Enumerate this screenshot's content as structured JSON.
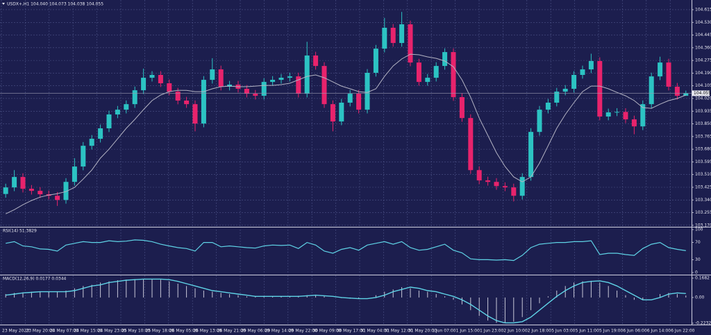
{
  "chart_data": [
    {
      "type": "candlestick",
      "title": "USDX+,H1  104.040 104.073 104.038 104.055",
      "up_color": "#2cc3c3",
      "down_color": "#e8236c",
      "grid": true,
      "ylim": [
        103.16,
        104.68
      ],
      "yticks": [
        104.615,
        {
          "value": 104.53,
          "label": "104.530"
        },
        104.445,
        {
          "value": 104.36,
          "label": "104.360"
        },
        104.275,
        {
          "value": 104.19,
          "label": "104.190"
        },
        104.105,
        {
          "value": 104.02,
          "label": "104.020"
        },
        103.935,
        {
          "value": 103.85,
          "label": "103.850"
        },
        103.765,
        {
          "value": 103.68,
          "label": "103.680"
        },
        103.595,
        {
          "value": 103.51,
          "label": "103.510"
        },
        103.425,
        {
          "value": 103.34,
          "label": "103.340"
        },
        103.255,
        {
          "value": 103.17,
          "label": "103.170"
        }
      ],
      "x_labels": [
        "23 May 2023",
        "23 May 20:00",
        "24 May 07:00",
        "24 May 15:00",
        "24 May 23:00",
        "25 May 10:00",
        "25 May 18:00",
        "26 May 05:00",
        "26 May 13:00",
        "26 May 21:00",
        "29 May 06:00",
        "29 May 14:00",
        "29 May 22:00",
        "30 May 09:00",
        "30 May 17:00",
        "31 May 04:00",
        "31 May 12:00",
        "31 May 20:00",
        "1 Jun 07:00",
        "1 Jun 15:00",
        "1 Jun 23:00",
        "2 Jun 10:00",
        "2 Jun 18:00",
        "5 Jun 03:00",
        "5 Jun 11:00",
        "5 Jun 19:00",
        "6 Jun 06:00",
        "6 Jun 14:00",
        "6 Jun 22:00"
      ],
      "open": [
        103.38,
        103.424,
        103.494,
        103.415,
        103.401,
        103.378,
        103.368,
        103.34,
        103.461,
        103.564,
        103.703,
        103.75,
        103.82,
        103.913,
        103.945,
        103.982,
        104.075,
        104.159,
        104.178,
        104.122,
        104.066,
        104.006,
        103.982,
        103.852,
        104.145,
        104.215,
        104.099,
        104.113,
        104.085,
        104.052,
        104.038,
        104.131,
        104.145,
        104.159,
        104.168,
        104.052,
        104.308,
        104.238,
        103.982,
        103.866,
        103.992,
        104.052,
        103.945,
        104.192,
        104.354,
        104.494,
        104.392,
        104.517,
        104.261,
        104.131,
        104.159,
        104.238,
        104.331,
        104.029,
        103.889,
        103.54,
        103.471,
        103.461,
        103.433,
        103.424,
        103.368,
        103.494,
        103.796,
        103.945,
        103.992,
        104.066,
        104.085,
        104.178,
        104.215,
        104.271,
        103.899,
        103.927,
        103.93,
        103.88,
        103.833,
        103.982,
        104.168,
        104.261,
        104.099,
        104.038
      ],
      "high": [
        103.449,
        103.54,
        103.519,
        103.44,
        103.426,
        103.403,
        103.393,
        103.486,
        103.62,
        103.728,
        103.775,
        103.845,
        103.938,
        103.97,
        104.007,
        104.1,
        104.22,
        104.203,
        104.203,
        104.147,
        104.091,
        104.031,
        104.007,
        104.17,
        104.29,
        104.24,
        104.138,
        104.138,
        104.11,
        104.077,
        104.156,
        104.17,
        104.184,
        104.193,
        104.193,
        104.4,
        104.333,
        104.263,
        104.007,
        104.017,
        104.077,
        104.077,
        104.217,
        104.379,
        104.56,
        104.519,
        104.6,
        104.542,
        104.286,
        104.184,
        104.263,
        104.356,
        104.356,
        104.054,
        103.914,
        103.565,
        103.496,
        103.486,
        103.458,
        103.449,
        103.519,
        103.821,
        103.97,
        104.017,
        104.091,
        104.11,
        104.203,
        104.24,
        104.32,
        104.296,
        103.952,
        103.955,
        103.955,
        103.905,
        104.007,
        104.193,
        104.3,
        104.286,
        104.124,
        104.073
      ],
      "low": [
        103.355,
        103.399,
        103.39,
        103.376,
        103.353,
        103.343,
        103.3,
        103.315,
        103.436,
        103.539,
        103.678,
        103.725,
        103.795,
        103.888,
        103.92,
        103.957,
        104.05,
        104.134,
        104.097,
        104.041,
        103.981,
        103.957,
        103.8,
        103.827,
        104.12,
        104.074,
        104.074,
        104.06,
        104.027,
        104.013,
        104.013,
        104.106,
        104.12,
        104.134,
        104.027,
        104.027,
        104.213,
        103.957,
        103.8,
        103.841,
        103.967,
        103.92,
        103.92,
        104.167,
        104.329,
        104.367,
        104.367,
        104.236,
        104.106,
        104.106,
        104.134,
        104.213,
        104.004,
        103.864,
        103.515,
        103.446,
        103.436,
        103.408,
        103.399,
        103.33,
        103.343,
        103.469,
        103.771,
        103.92,
        103.967,
        104.041,
        104.06,
        104.153,
        104.19,
        103.874,
        103.874,
        103.902,
        103.855,
        103.78,
        103.808,
        103.957,
        104.143,
        104.074,
        104.013,
        104.038
      ],
      "close": [
        103.424,
        103.494,
        103.415,
        103.401,
        103.378,
        103.368,
        103.34,
        103.461,
        103.564,
        103.703,
        103.75,
        103.82,
        103.913,
        103.945,
        103.982,
        104.075,
        104.159,
        104.178,
        104.122,
        104.066,
        104.006,
        103.982,
        103.852,
        104.145,
        104.215,
        104.099,
        104.113,
        104.085,
        104.052,
        104.038,
        104.131,
        104.145,
        104.159,
        104.168,
        104.052,
        104.308,
        104.238,
        103.982,
        103.866,
        103.992,
        104.052,
        103.945,
        104.192,
        104.354,
        104.494,
        104.392,
        104.517,
        104.261,
        104.131,
        104.159,
        104.238,
        104.331,
        104.029,
        103.889,
        103.54,
        103.471,
        103.461,
        103.433,
        103.424,
        103.368,
        103.494,
        103.796,
        103.945,
        103.992,
        104.066,
        104.085,
        104.178,
        104.215,
        104.271,
        103.899,
        103.927,
        103.93,
        103.88,
        103.833,
        103.982,
        104.168,
        104.261,
        104.099,
        104.038,
        104.055
      ],
      "overlay": {
        "color": "#b4b4c4",
        "values": [
          103.247,
          103.275,
          103.308,
          103.336,
          103.359,
          103.373,
          103.382,
          103.396,
          103.424,
          103.48,
          103.54,
          103.62,
          103.68,
          103.75,
          103.82,
          103.88,
          103.945,
          104.006,
          104.043,
          104.066,
          104.075,
          104.075,
          104.066,
          104.066,
          104.085,
          104.099,
          104.103,
          104.099,
          104.099,
          104.103,
          104.108,
          104.108,
          104.113,
          104.122,
          104.145,
          104.168,
          104.178,
          104.159,
          104.131,
          104.103,
          104.085,
          104.066,
          104.061,
          104.085,
          104.168,
          104.238,
          104.285,
          104.317,
          104.313,
          104.299,
          104.289,
          104.271,
          104.233,
          104.145,
          104.029,
          103.889,
          103.773,
          103.657,
          103.564,
          103.494,
          103.461,
          103.494,
          103.587,
          103.703,
          103.82,
          103.913,
          103.992,
          104.066,
          104.103,
          104.103,
          104.085,
          104.061,
          104.038,
          104.006,
          103.959,
          103.954,
          103.982,
          104.006,
          104.02,
          104.043
        ]
      }
    },
    {
      "type": "line",
      "title": "RSI(14) 51.3829",
      "ylim": [
        0,
        100
      ],
      "yticks": [
        100,
        70,
        30,
        0
      ],
      "series": [
        {
          "color": "#5fd3e6",
          "values": [
            68,
            72,
            62,
            60,
            55,
            54,
            50,
            64,
            68,
            72,
            70,
            70,
            74,
            72,
            73,
            76,
            75,
            72,
            66,
            62,
            58,
            56,
            50,
            70,
            70,
            60,
            62,
            60,
            58,
            57,
            62,
            64,
            63,
            64,
            56,
            70,
            64,
            50,
            45,
            54,
            58,
            52,
            64,
            68,
            72,
            66,
            72,
            58,
            52,
            54,
            60,
            66,
            52,
            46,
            32,
            30,
            30,
            29,
            30,
            28,
            40,
            58,
            66,
            68,
            70,
            70,
            72,
            72,
            74,
            42,
            45,
            45,
            42,
            40,
            56,
            66,
            70,
            58,
            54,
            51
          ]
        }
      ]
    },
    {
      "type": "macd",
      "title": "MACD(12,26,9) 0.0177 0.0344",
      "ylim": [
        -0.2352,
        0.1923
      ],
      "yticks": [
        0.1682,
        {
          "value": 0,
          "label": "0.00"
        },
        -0.2232
      ],
      "histogram": {
        "color": "#c8c8d8",
        "values": [
          0.03,
          0.04,
          0.045,
          0.05,
          0.05,
          0.05,
          0.05,
          0.06,
          0.08,
          0.1,
          0.11,
          0.13,
          0.14,
          0.15,
          0.155,
          0.16,
          0.16,
          0.16,
          0.155,
          0.14,
          0.12,
          0.1,
          0.08,
          0.06,
          0.05,
          0.04,
          0.03,
          0.02,
          0.01,
          0.01,
          0.01,
          0.01,
          0.01,
          0.01,
          0.015,
          0.02,
          0.015,
          0.01,
          0.0,
          -0.005,
          -0.01,
          -0.01,
          0.0,
          0.02,
          0.05,
          0.07,
          0.09,
          0.08,
          0.06,
          0.05,
          0.03,
          0.01,
          -0.02,
          -0.06,
          -0.11,
          -0.16,
          -0.2,
          -0.22,
          -0.22,
          -0.21,
          -0.17,
          -0.11,
          -0.05,
          0.01,
          0.06,
          0.1,
          0.13,
          0.14,
          0.145,
          0.13,
          0.1,
          0.06,
          0.02,
          -0.02,
          -0.02,
          0.0,
          0.03,
          0.04,
          0.03,
          0.0177
        ]
      },
      "signal": {
        "color": "#5fd3e6",
        "values": [
          0.02,
          0.03,
          0.04,
          0.045,
          0.05,
          0.05,
          0.05,
          0.05,
          0.06,
          0.08,
          0.1,
          0.11,
          0.13,
          0.14,
          0.15,
          0.155,
          0.16,
          0.16,
          0.16,
          0.155,
          0.14,
          0.12,
          0.1,
          0.08,
          0.06,
          0.05,
          0.04,
          0.03,
          0.02,
          0.01,
          0.01,
          0.01,
          0.01,
          0.01,
          0.01,
          0.015,
          0.02,
          0.015,
          0.01,
          0.0,
          -0.005,
          -0.01,
          -0.01,
          0.0,
          0.02,
          0.05,
          0.07,
          0.09,
          0.08,
          0.06,
          0.05,
          0.03,
          0.01,
          -0.02,
          -0.06,
          -0.11,
          -0.16,
          -0.2,
          -0.22,
          -0.22,
          -0.21,
          -0.17,
          -0.11,
          -0.05,
          0.01,
          0.06,
          0.1,
          0.13,
          0.14,
          0.145,
          0.13,
          0.1,
          0.06,
          0.02,
          -0.02,
          -0.02,
          0.0,
          0.03,
          0.04,
          0.0344
        ]
      }
    }
  ]
}
